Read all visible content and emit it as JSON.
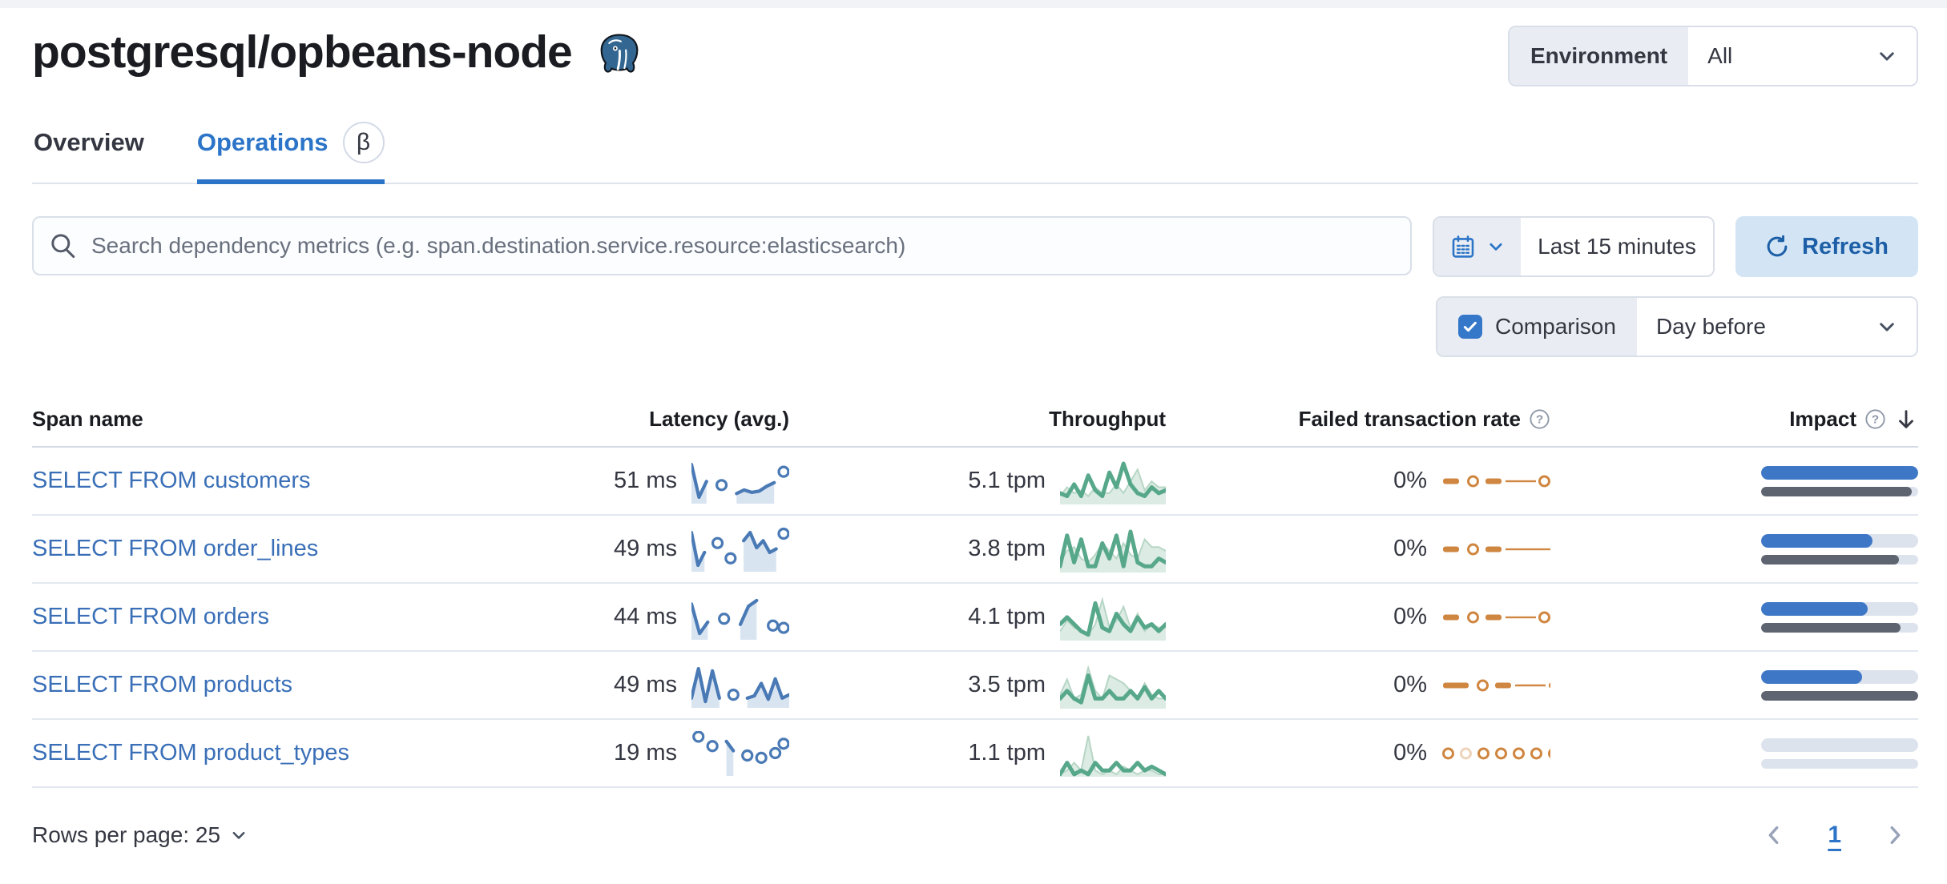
{
  "page": {
    "title": "postgresql/opbeans-node"
  },
  "environment": {
    "label": "Environment",
    "value": "All"
  },
  "tabs": [
    {
      "label": "Overview",
      "active": false
    },
    {
      "label": "Operations",
      "active": true,
      "beta": "β"
    }
  ],
  "search": {
    "placeholder": "Search dependency metrics (e.g. span.destination.service.resource:elasticsearch)"
  },
  "time_picker": {
    "value": "Last 15 minutes"
  },
  "refresh": {
    "label": "Refresh"
  },
  "comparison": {
    "label": "Comparison",
    "checked": true,
    "value": "Day before"
  },
  "table": {
    "columns": [
      "Span name",
      "Latency (avg.)",
      "Throughput",
      "Failed transaction rate",
      "Impact"
    ],
    "rows": [
      {
        "span_name": "SELECT FROM customers",
        "latency": "51 ms",
        "latency_spark": [
          58,
          4,
          30,
          null,
          24,
          null,
          10,
          16,
          12,
          14,
          22,
          28,
          null,
          46
        ],
        "throughput": "5.1 tpm",
        "throughput_spark": [
          3,
          2,
          6,
          2,
          9,
          4,
          2,
          10,
          5,
          13,
          6,
          3,
          2,
          5,
          3,
          4
        ],
        "throughput_prev": [
          2,
          5,
          3,
          4,
          2,
          5,
          3,
          3,
          6,
          3,
          7,
          11,
          4,
          7,
          5,
          5
        ],
        "failed_rate": "0%",
        "failed_spark": [
          "d",
          "c",
          "d",
          "l",
          "c",
          "c"
        ],
        "impact": 1.0,
        "impact_prev": 0.96
      },
      {
        "span_name": "SELECT FROM order_lines",
        "latency": "49 ms",
        "latency_spark": [
          60,
          4,
          26,
          null,
          42,
          null,
          16,
          null,
          46,
          60,
          34,
          46,
          26,
          32,
          null,
          58
        ],
        "throughput": "3.8 tpm",
        "throughput_spark": [
          1,
          9,
          2,
          8,
          1,
          1,
          7,
          3,
          9,
          1,
          10,
          2,
          1,
          1,
          3,
          2
        ],
        "throughput_prev": [
          2,
          5,
          6,
          3,
          2,
          4,
          7,
          5,
          3,
          7,
          4,
          3,
          8,
          6,
          6,
          5
        ],
        "failed_rate": "0%",
        "failed_spark": [
          "d",
          "c",
          "d",
          "L",
          "c"
        ],
        "impact": 0.71,
        "impact_prev": 0.88
      },
      {
        "span_name": "SELECT FROM orders",
        "latency": "44 ms",
        "latency_spark": [
          56,
          4,
          24,
          null,
          30,
          null,
          20,
          52,
          62,
          null,
          18,
          null,
          14
        ],
        "throughput": "4.1 tpm",
        "throughput_spark": [
          4,
          6,
          4,
          2,
          1,
          10,
          3,
          2,
          7,
          4,
          2,
          6,
          3,
          4,
          2,
          4
        ],
        "throughput_prev": [
          2,
          5,
          3,
          2,
          1,
          4,
          11,
          3,
          5,
          9,
          3,
          7,
          2,
          4,
          3,
          3
        ],
        "failed_rate": "0%",
        "failed_spark": [
          "d",
          "c",
          "d",
          "l",
          "c",
          "c"
        ],
        "impact": 0.68,
        "impact_prev": 0.89
      },
      {
        "span_name": "SELECT FROM products",
        "latency": "49 ms",
        "latency_spark": [
          10,
          62,
          4,
          58,
          10,
          null,
          16,
          null,
          10,
          14,
          36,
          8,
          44,
          10,
          16
        ],
        "throughput": "3.5 tpm",
        "throughput_spark": [
          2,
          4,
          2,
          1,
          8,
          2,
          2,
          4,
          2,
          2,
          4,
          2,
          5,
          2,
          4,
          2
        ],
        "throughput_prev": [
          3,
          7,
          2,
          3,
          10,
          4,
          2,
          8,
          7,
          6,
          4,
          2,
          6,
          3,
          2,
          2
        ],
        "failed_rate": "0%",
        "failed_spark": [
          "D",
          "c",
          "d",
          "l",
          "d"
        ],
        "impact": 0.645,
        "impact_prev": 1.0
      },
      {
        "span_name": "SELECT FROM product_types",
        "latency": "19 ms",
        "latency_spark": [
          null,
          30,
          null,
          22,
          null,
          26,
          18,
          null,
          14,
          null,
          12,
          null,
          16,
          null,
          24
        ],
        "throughput": "1.1 tpm",
        "throughput_spark": [
          0,
          3,
          0,
          1,
          0,
          3,
          1,
          1,
          3,
          1,
          1,
          3,
          1,
          2,
          1,
          0
        ],
        "throughput_prev": [
          0,
          1,
          3,
          1,
          10,
          1,
          0,
          1,
          0,
          2,
          1,
          0,
          1,
          1,
          0,
          0
        ],
        "failed_rate": "0%",
        "failed_spark": [
          "c",
          "o",
          "c",
          "c",
          "c",
          "c",
          "c"
        ],
        "impact": 0,
        "impact_prev": 0
      }
    ]
  },
  "footer": {
    "rows_per_page_label": "Rows per page: 25",
    "page": "1"
  },
  "colors": {
    "accent_blue": "#2b74c8",
    "link_blue": "#3a6fb7",
    "latency_line": "#4a7ab5",
    "latency_fill": "#d9e4f1",
    "throughput_line": "#57a88b",
    "throughput_fill": "#dcebe3",
    "failed_orange": "#cf8640",
    "impact_bar": "#3f77c7",
    "impact_prev_bar": "#5f6570"
  }
}
